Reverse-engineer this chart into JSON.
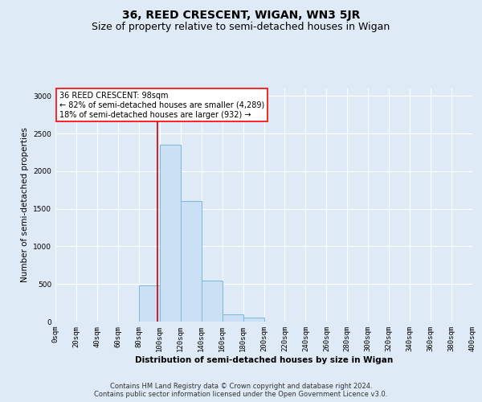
{
  "title": "36, REED CRESCENT, WIGAN, WN3 5JR",
  "subtitle": "Size of property relative to semi-detached houses in Wigan",
  "xlabel": "Distribution of semi-detached houses by size in Wigan",
  "ylabel": "Number of semi-detached properties",
  "footnote1": "Contains HM Land Registry data © Crown copyright and database right 2024.",
  "footnote2": "Contains public sector information licensed under the Open Government Licence v3.0.",
  "annotation_title": "36 REED CRESCENT: 98sqm",
  "annotation_line1": "← 82% of semi-detached houses are smaller (4,289)",
  "annotation_line2": "18% of semi-detached houses are larger (932) →",
  "bar_edges": [
    0,
    20,
    40,
    60,
    80,
    100,
    120,
    140,
    160,
    180,
    200,
    220,
    240,
    260,
    280,
    300,
    320,
    340,
    360,
    380,
    400
  ],
  "bar_heights": [
    0,
    0,
    0,
    0,
    480,
    2350,
    1600,
    540,
    100,
    50,
    0,
    0,
    0,
    0,
    0,
    0,
    0,
    0,
    0,
    0
  ],
  "bar_facecolor": "#cce0f5",
  "bar_edgecolor": "#7ab8d9",
  "vline_color": "#cc0000",
  "vline_x": 98,
  "ylim": [
    0,
    3100
  ],
  "yticks": [
    0,
    500,
    1000,
    1500,
    2000,
    2500,
    3000
  ],
  "xtick_labels": [
    "0sqm",
    "20sqm",
    "40sqm",
    "60sqm",
    "80sqm",
    "100sqm",
    "120sqm",
    "140sqm",
    "160sqm",
    "180sqm",
    "200sqm",
    "220sqm",
    "240sqm",
    "260sqm",
    "280sqm",
    "300sqm",
    "320sqm",
    "340sqm",
    "360sqm",
    "380sqm",
    "400sqm"
  ],
  "bg_color": "#deeaf5",
  "plot_bg_color": "#deeaf5",
  "grid_color": "#ffffff",
  "title_fontsize": 10,
  "subtitle_fontsize": 9,
  "axis_label_fontsize": 7.5,
  "tick_fontsize": 6.5,
  "annotation_fontsize": 7,
  "footnote_fontsize": 6,
  "ylabel_fontsize": 7.5
}
